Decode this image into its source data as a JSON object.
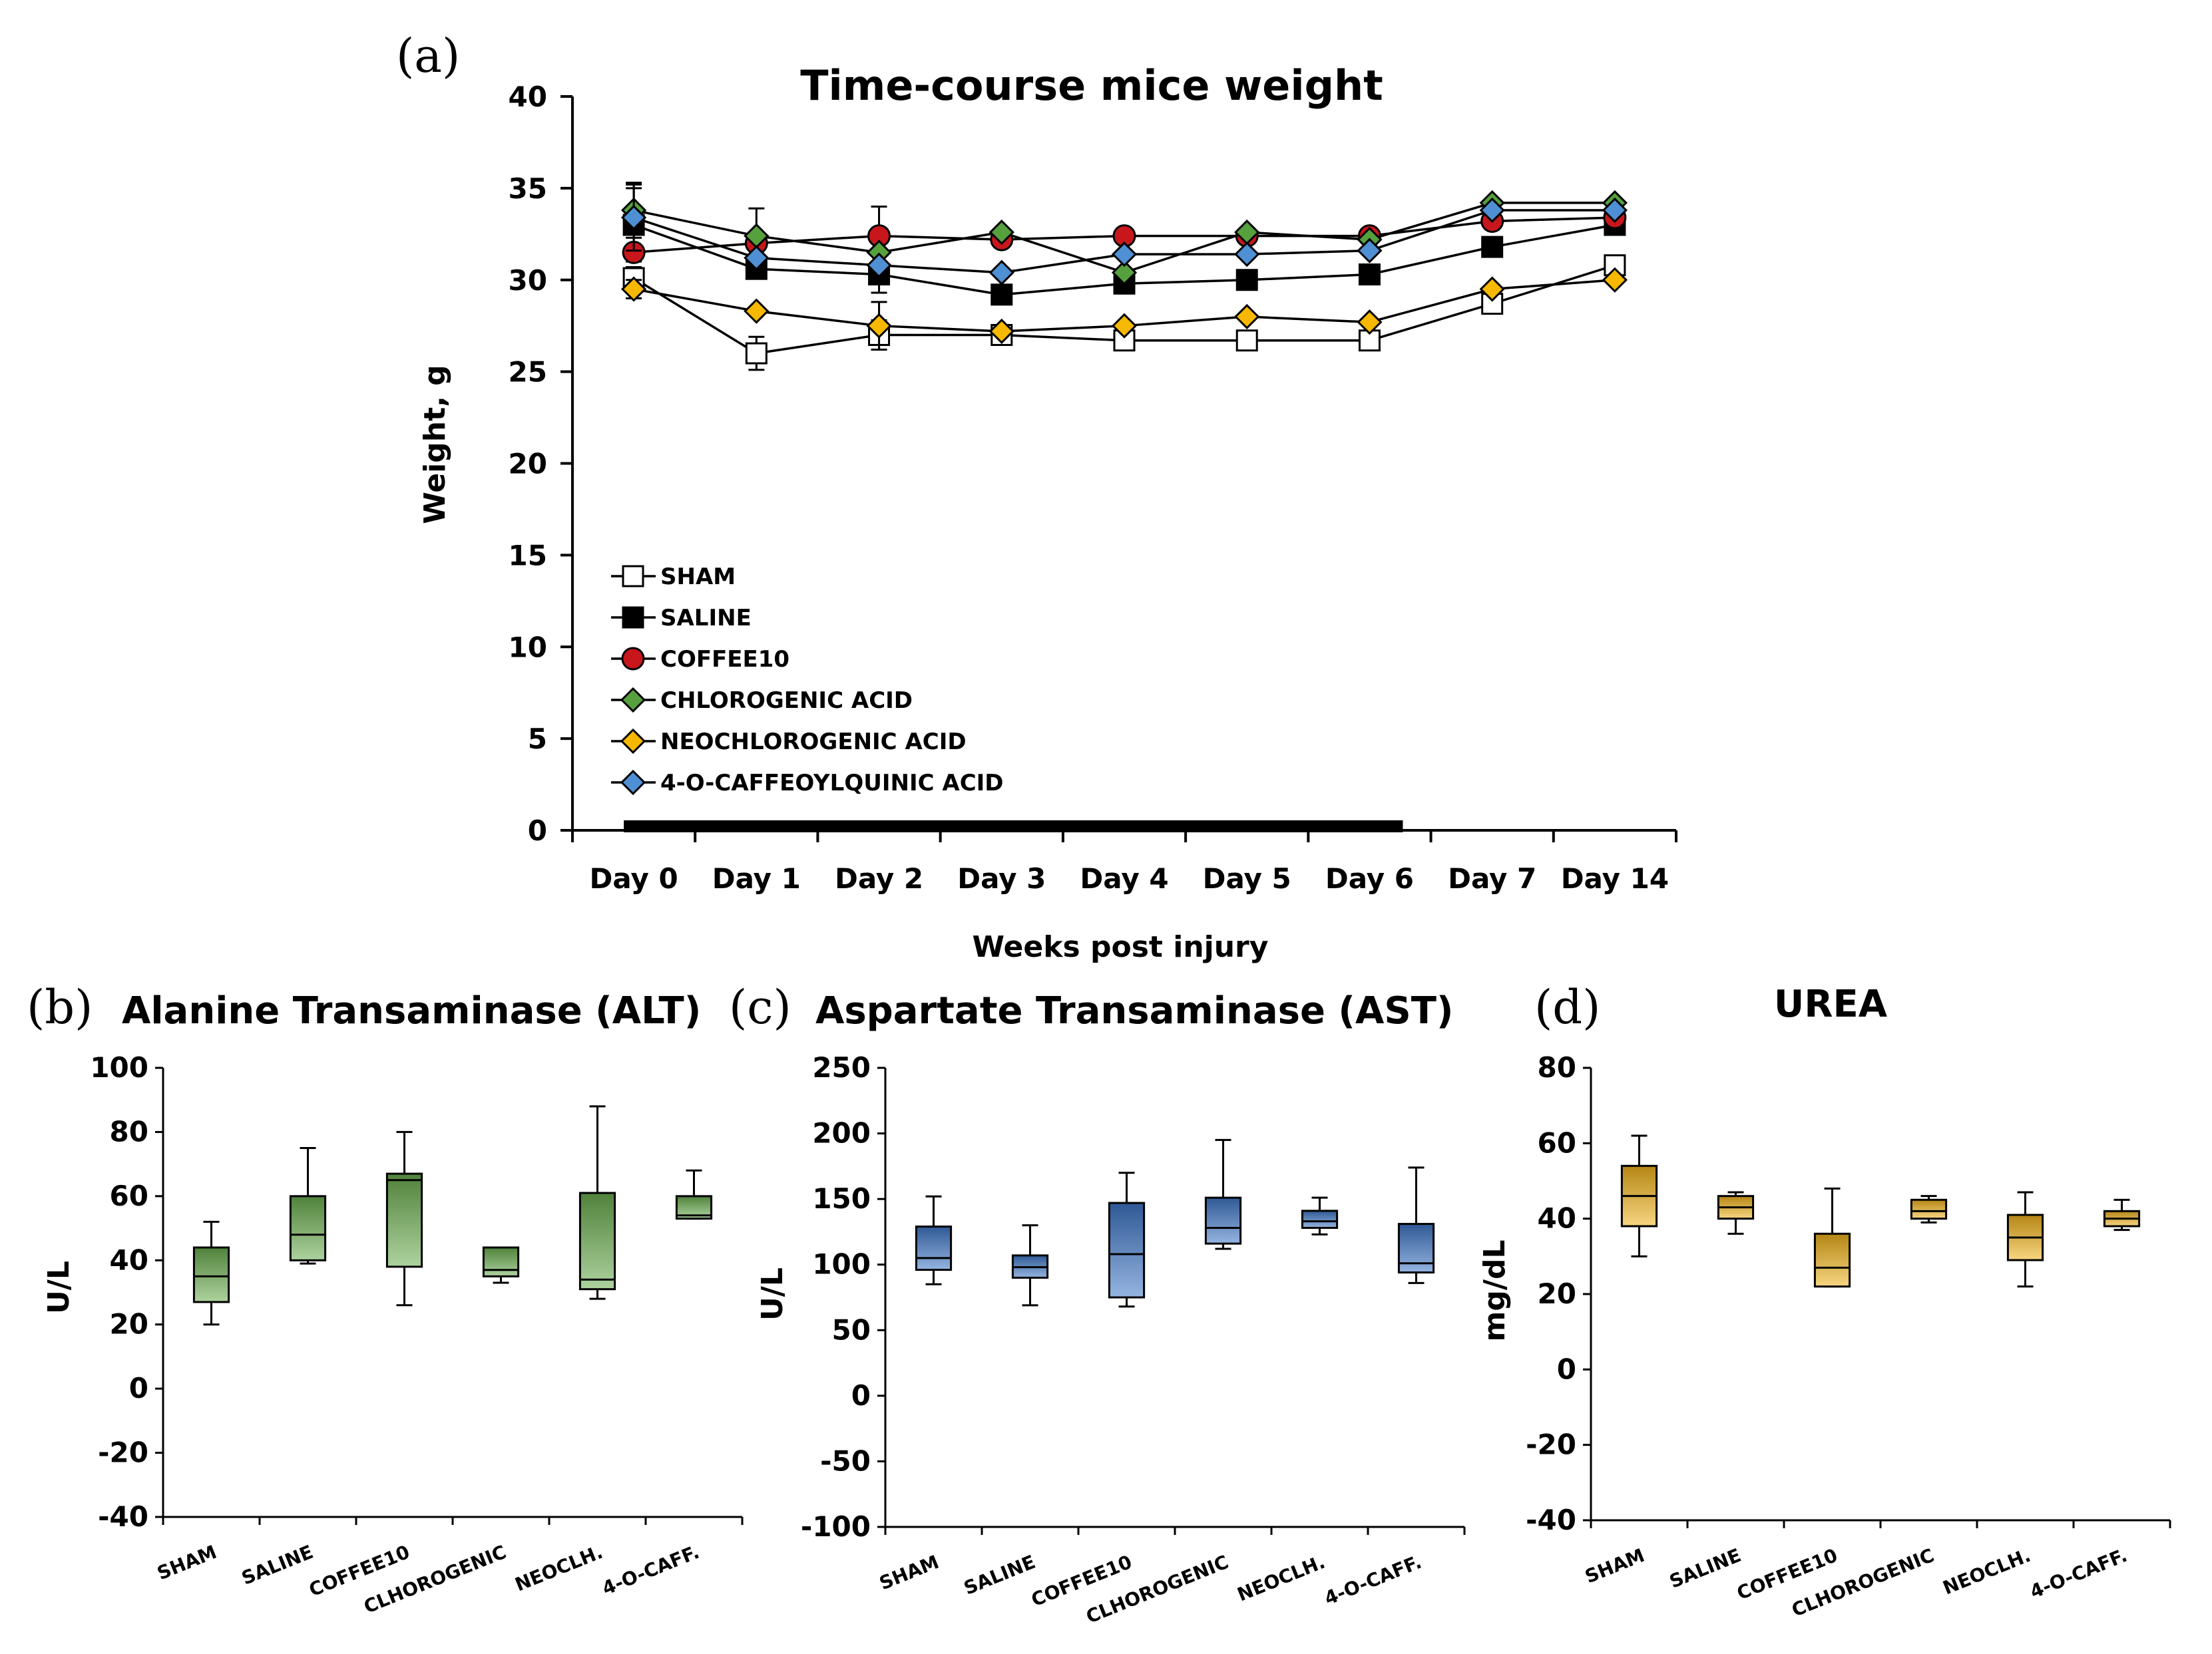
{
  "chart_data": [
    {
      "panel": "(a)",
      "type": "line",
      "title": "Time-course mice weight",
      "xlabel": "Weeks post injury",
      "ylabel": "Weight, g",
      "ylim": [
        0,
        40
      ],
      "yticks": [
        0,
        5,
        10,
        15,
        20,
        25,
        30,
        35,
        40
      ],
      "categories": [
        "Day 0",
        "Day 1",
        "Day 2",
        "Day 3",
        "Day 4",
        "Day 5",
        "Day 6",
        "Day 7",
        "Day 14"
      ],
      "treatment_bar": {
        "from": "Day 0",
        "to": "Day 6"
      },
      "series": [
        {
          "name": "SHAM",
          "marker": "square",
          "fill": "#ffffff",
          "values": [
            30.1,
            26.0,
            27.0,
            27.0,
            26.7,
            26.7,
            26.7,
            28.7,
            30.8
          ],
          "error": [
            0.6,
            0.9,
            0.8,
            0.5,
            0,
            0,
            0,
            0,
            0
          ]
        },
        {
          "name": "SALINE",
          "marker": "square",
          "fill": "#000000",
          "values": [
            33.0,
            30.6,
            30.3,
            29.2,
            29.8,
            30.0,
            30.3,
            31.8,
            33.0
          ],
          "error": [
            2.0,
            0,
            1.0,
            0,
            0,
            0,
            0,
            0,
            0
          ]
        },
        {
          "name": "COFFEE10",
          "marker": "circle",
          "fill": "#c8161d",
          "values": [
            31.5,
            32.0,
            32.4,
            32.2,
            32.4,
            32.4,
            32.4,
            33.2,
            33.4
          ],
          "error": [
            0,
            0,
            1.6,
            0,
            0,
            0,
            0,
            0,
            0
          ]
        },
        {
          "name": "CHLOROGENIC ACID",
          "marker": "diamond",
          "fill": "#56a03e",
          "values": [
            33.8,
            32.4,
            31.5,
            32.6,
            30.4,
            32.6,
            32.2,
            34.2,
            34.2
          ],
          "error": [
            1.5,
            1.5,
            0,
            0,
            0,
            0,
            0,
            0,
            0
          ]
        },
        {
          "name": "NEOCHLOROGENIC ACID",
          "marker": "diamond",
          "fill": "#f6b800",
          "values": [
            29.5,
            28.3,
            27.5,
            27.2,
            27.5,
            28.0,
            27.7,
            29.5,
            30.0
          ],
          "error": [
            0.5,
            0,
            1.3,
            0,
            0,
            0,
            0,
            0,
            0
          ]
        },
        {
          "name": "4-O-CAFFEOYLQUINIC ACID",
          "marker": "diamond",
          "fill": "#4f8fd4",
          "values": [
            33.4,
            31.2,
            30.8,
            30.4,
            31.4,
            31.4,
            31.6,
            33.8,
            33.8
          ],
          "error": [
            1.8,
            0,
            0,
            0,
            0,
            0,
            0,
            0,
            0
          ]
        }
      ]
    },
    {
      "panel": "(b)",
      "type": "box",
      "title": "Alanine Transaminase (ALT)",
      "ylabel": "U/L",
      "ylim": [
        -40,
        100
      ],
      "yticks": [
        -40,
        -20,
        0,
        20,
        40,
        60,
        80,
        100
      ],
      "color": "#6aad4f",
      "categories": [
        "SHAM",
        "SALINE",
        "COFFEE10",
        "CLHOROGENIC",
        "NEOCLH.",
        "4-O-CAFF."
      ],
      "boxes": [
        {
          "min": 20,
          "q1": 27,
          "median": 35,
          "q3": 44,
          "max": 52
        },
        {
          "min": 39,
          "q1": 40,
          "median": 48,
          "q3": 60,
          "max": 75
        },
        {
          "min": 26,
          "q1": 38,
          "median": 65,
          "q3": 67,
          "max": 80
        },
        {
          "min": 33,
          "q1": 35,
          "median": 37,
          "q3": 44,
          "max": 44
        },
        {
          "min": 28,
          "q1": 31,
          "median": 34,
          "q3": 61,
          "max": 88
        },
        {
          "min": 53,
          "q1": 53,
          "median": 54,
          "q3": 60,
          "max": 68
        }
      ]
    },
    {
      "panel": "(c)",
      "type": "box",
      "title": "Aspartate Transaminase (AST)",
      "ylabel": "U/L",
      "ylim": [
        -100,
        250
      ],
      "yticks": [
        -100,
        -50,
        0,
        50,
        100,
        150,
        200,
        250
      ],
      "color": "#3f76c6",
      "categories": [
        "SHAM",
        "SALINE",
        "COFFEE10",
        "CLHOROGENIC",
        "NEOCLH.",
        "4-O-CAFF."
      ],
      "boxes": [
        {
          "min": 85,
          "q1": 96,
          "median": 105,
          "q3": 129,
          "max": 152
        },
        {
          "min": 69,
          "q1": 90,
          "median": 98,
          "q3": 107,
          "max": 130
        },
        {
          "min": 68,
          "q1": 75,
          "median": 108,
          "q3": 147,
          "max": 170
        },
        {
          "min": 112,
          "q1": 116,
          "median": 128,
          "q3": 151,
          "max": 195
        },
        {
          "min": 123,
          "q1": 128,
          "median": 133,
          "q3": 141,
          "max": 151
        },
        {
          "min": 86,
          "q1": 94,
          "median": 101,
          "q3": 131,
          "max": 174
        }
      ]
    },
    {
      "panel": "(d)",
      "type": "box",
      "title": "UREA",
      "ylabel": "mg/dL",
      "ylim": [
        -40,
        80
      ],
      "yticks": [
        -40,
        -20,
        0,
        20,
        40,
        60,
        80
      ],
      "color": "#f0b31a",
      "categories": [
        "SHAM",
        "SALINE",
        "COFFEE10",
        "CLHOROGENIC",
        "NEOCLH.",
        "4-O-CAFF."
      ],
      "boxes": [
        {
          "min": 30,
          "q1": 38,
          "median": 46,
          "q3": 54,
          "max": 62
        },
        {
          "min": 36,
          "q1": 40,
          "median": 43,
          "q3": 46,
          "max": 47
        },
        {
          "min": 22,
          "q1": 22,
          "median": 27,
          "q3": 36,
          "max": 48
        },
        {
          "min": 39,
          "q1": 40,
          "median": 42,
          "q3": 45,
          "max": 46
        },
        {
          "min": 22,
          "q1": 29,
          "median": 35,
          "q3": 41,
          "max": 47
        },
        {
          "min": 37,
          "q1": 38,
          "median": 40,
          "q3": 42,
          "max": 45
        }
      ]
    }
  ]
}
